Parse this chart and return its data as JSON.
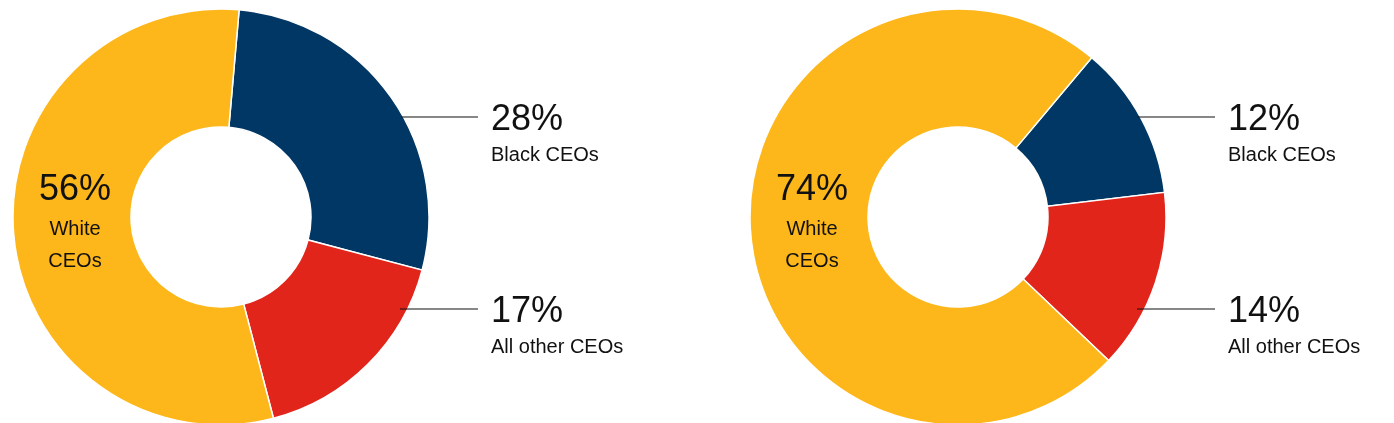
{
  "chart_data": [
    {
      "type": "donut",
      "categories": [
        "Black CEOs",
        "All other CEOs",
        "White CEOs"
      ],
      "values": [
        28,
        17,
        56
      ],
      "colors": [
        "#003764",
        "#e1251b",
        "#fdb71a"
      ],
      "value_labels": [
        "28%",
        "17%",
        "56%"
      ]
    },
    {
      "type": "donut",
      "categories": [
        "Black CEOs",
        "All other CEOs",
        "White CEOs"
      ],
      "values": [
        12,
        14,
        74
      ],
      "colors": [
        "#003764",
        "#e1251b",
        "#fdb71a"
      ],
      "value_labels": [
        "12%",
        "14%",
        "74%"
      ]
    }
  ]
}
